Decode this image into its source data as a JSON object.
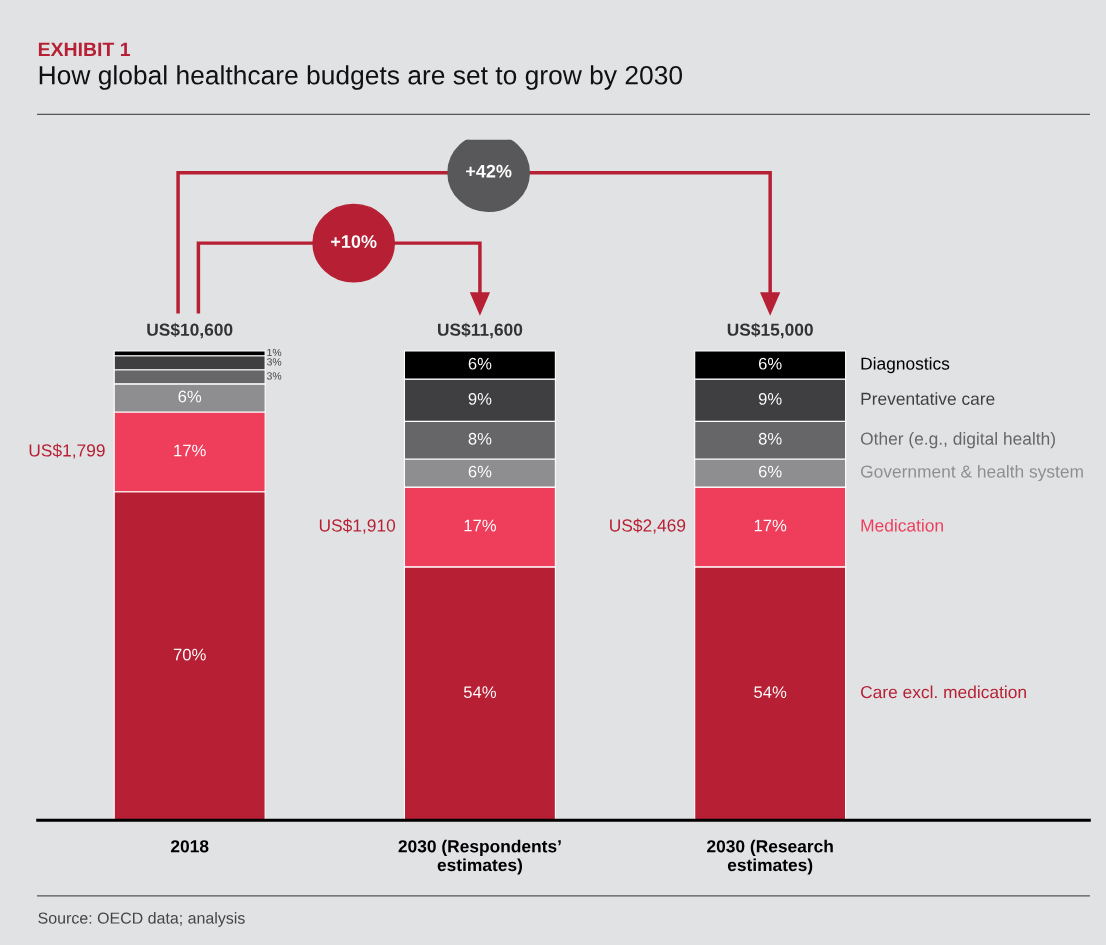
{
  "chart_data": {
    "type": "bar",
    "stacked": true,
    "title": "EXHIBIT 1",
    "subtitle": "How global healthcare budgets are set to grow by 2030",
    "categories": [
      "2018",
      "2030 (Respondents’\nestimates)",
      "2030 (Research\nestimates)"
    ],
    "series": [
      {
        "name": "Care excl. medication",
        "color": "#b72034",
        "values": [
          70,
          54,
          54
        ],
        "value_labels": [
          "70%",
          "54%",
          "54%"
        ]
      },
      {
        "name": "Medication",
        "color": "#ef3e5c",
        "values": [
          17,
          17,
          17
        ],
        "value_labels": [
          "17%",
          "17%",
          "17%"
        ]
      },
      {
        "name": "Government & health system",
        "color": "#8e8e90",
        "values": [
          6,
          6,
          6
        ],
        "value_labels": [
          "6%",
          "6%",
          "6%"
        ]
      },
      {
        "name": "Other (e.g., digital health)",
        "color": "#666668",
        "values": [
          3,
          8,
          8
        ],
        "value_labels": [
          "3%",
          "8%",
          "8%"
        ]
      },
      {
        "name": "Preventative care",
        "color": "#3f3f41",
        "values": [
          3,
          9,
          9
        ],
        "value_labels": [
          "3%",
          "9%",
          "9%"
        ]
      },
      {
        "name": "Diagnostics",
        "color": "#000000",
        "values": [
          1,
          6,
          6
        ],
        "value_labels": [
          "1%",
          "6%",
          "6%"
        ]
      }
    ],
    "totals": [
      "US$10,600",
      "US$11,600",
      "US$15,000"
    ],
    "annotations": [
      "+10%",
      "+42%",
      "US$1,799",
      "US$1,910",
      "US$2,469",
      "Source: OECD data; analysis"
    ]
  }
}
